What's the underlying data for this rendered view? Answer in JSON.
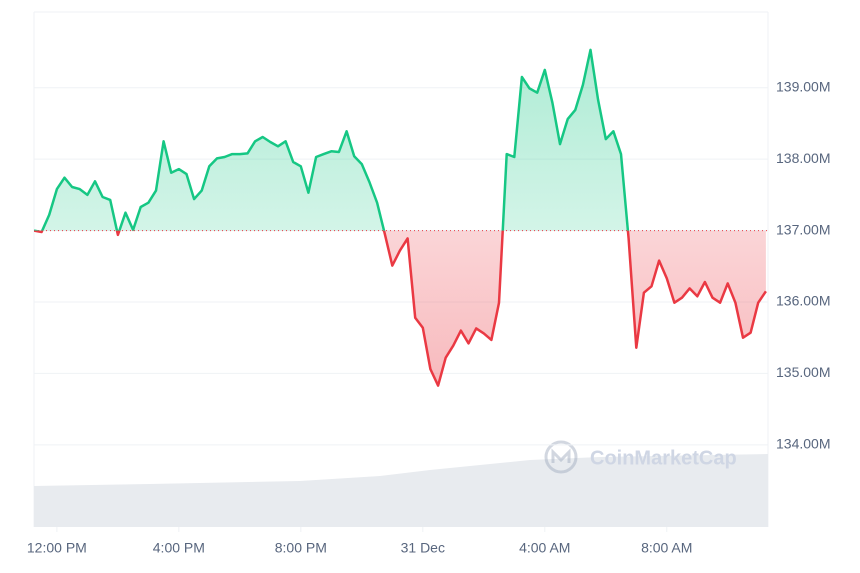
{
  "chart_data": {
    "type": "line",
    "watermark": "CoinMarketCap",
    "x": [
      -0.75,
      -0.5,
      -0.25,
      0,
      0.25,
      0.5,
      0.75,
      1,
      1.25,
      1.5,
      1.75,
      2,
      2.25,
      2.5,
      2.75,
      3,
      3.25,
      3.5,
      3.75,
      4,
      4.25,
      4.5,
      4.75,
      5,
      5.25,
      5.5,
      5.75,
      6,
      6.25,
      6.5,
      6.75,
      7,
      7.25,
      7.5,
      7.75,
      8,
      8.25,
      8.5,
      8.75,
      9,
      9.25,
      9.5,
      9.75,
      10,
      10.25,
      10.5,
      10.75,
      11,
      11.25,
      11.5,
      11.75,
      12,
      12.25,
      12.5,
      12.75,
      13,
      13.25,
      13.5,
      13.75,
      14,
      14.25,
      14.5,
      14.75,
      15,
      15.25,
      15.5,
      15.75,
      16,
      16.25,
      16.5,
      16.75,
      17,
      17.25,
      17.5,
      17.75,
      18,
      18.25,
      18.5,
      18.75,
      19,
      19.25,
      19.5,
      19.75,
      20,
      20.25,
      20.5,
      20.75,
      21,
      21.25,
      21.5,
      21.75,
      22,
      22.25,
      22.5,
      22.75,
      23,
      23.25
    ],
    "series": [
      {
        "name": "Market Cap",
        "color_up": "#16c784",
        "color_down": "#ea3943",
        "values": [
          137.0,
          136.98,
          137.22,
          137.58,
          137.74,
          137.61,
          137.58,
          137.5,
          137.69,
          137.47,
          137.43,
          136.94,
          137.25,
          137.01,
          137.33,
          137.39,
          137.56,
          138.25,
          137.81,
          137.86,
          137.79,
          137.44,
          137.56,
          137.9,
          138.01,
          138.03,
          138.07,
          138.07,
          138.08,
          138.25,
          138.31,
          138.24,
          138.18,
          138.25,
          137.96,
          137.9,
          137.53,
          138.03,
          138.07,
          138.11,
          138.1,
          138.39,
          138.04,
          137.93,
          137.68,
          137.39,
          136.96,
          136.51,
          136.72,
          136.89,
          135.78,
          135.64,
          135.06,
          134.83,
          135.22,
          135.39,
          135.6,
          135.42,
          135.63,
          135.56,
          135.47,
          135.99,
          138.07,
          138.03,
          139.15,
          138.99,
          138.93,
          139.25,
          138.79,
          138.21,
          138.56,
          138.69,
          139.04,
          139.53,
          138.83,
          138.28,
          138.39,
          138.07,
          136.89,
          135.36,
          136.13,
          136.22,
          136.58,
          136.33,
          135.99,
          136.06,
          136.19,
          136.08,
          136.28,
          136.06,
          135.99,
          136.26,
          135.99,
          135.5,
          135.57,
          135.99,
          136.15
        ]
      }
    ],
    "baseline": 137,
    "xlim": [
      -0.75,
      23.32
    ],
    "xticks": [
      {
        "value": 0,
        "label": "12:00 PM"
      },
      {
        "value": 4,
        "label": "4:00 PM"
      },
      {
        "value": 8,
        "label": "8:00 PM"
      },
      {
        "value": 12,
        "label": "31 Dec"
      },
      {
        "value": 16,
        "label": "4:00 AM"
      },
      {
        "value": 20,
        "label": "8:00 AM"
      }
    ],
    "ylim": [
      132.85,
      140.06
    ],
    "yticks": [
      {
        "value": 134,
        "label": "134.00M"
      },
      {
        "value": 135,
        "label": "135.00M"
      },
      {
        "value": 136,
        "label": "136.00M"
      },
      {
        "value": 137,
        "label": "137.00M"
      },
      {
        "value": 138,
        "label": "138.00M"
      },
      {
        "value": 139,
        "label": "139.00M"
      }
    ],
    "grid": true
  }
}
